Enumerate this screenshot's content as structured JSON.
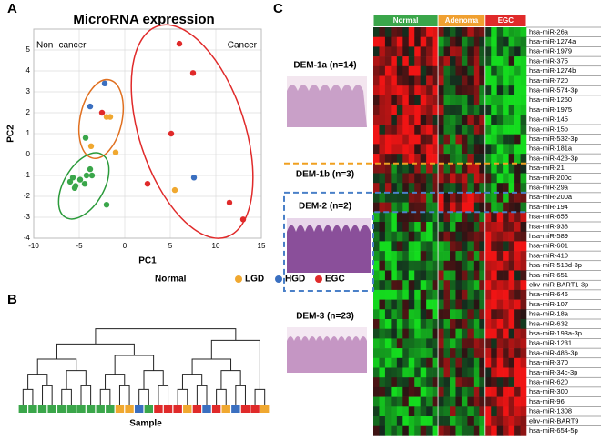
{
  "panels": [
    "A",
    "B",
    "C"
  ],
  "chart_data": [
    {
      "type": "scatter",
      "title": "MicroRNA expression",
      "x_label": "PC1",
      "y_label": "PC2",
      "annotations": [
        "Non -cancer",
        "Cancer"
      ],
      "xlim": [
        -10,
        15
      ],
      "xticks": [
        -10,
        -5,
        0,
        5,
        10,
        15
      ],
      "ylim": [
        -4,
        6
      ],
      "yticks": [
        -4,
        -3,
        -2,
        -1,
        0,
        1,
        2,
        3,
        4,
        5
      ],
      "series": [
        {
          "name": "Normal",
          "color": "#3aa64a",
          "x": [
            -6,
            -5.7,
            -5.4,
            -4.9,
            -4.4,
            -4.2,
            -3.8,
            -3.6,
            -4.3,
            -2,
            -5.5
          ],
          "values": [
            -1.3,
            -1.1,
            -1.5,
            -1.2,
            -1.4,
            -1,
            -0.7,
            -1,
            0.8,
            -2.4,
            -1.6
          ]
        },
        {
          "name": "LGD",
          "color": "#f0a830",
          "x": [
            -2,
            -1.6,
            -3.7,
            -1,
            5.5
          ],
          "values": [
            1.8,
            1.8,
            0.4,
            0.1,
            -1.7
          ]
        },
        {
          "name": "HGD",
          "color": "#3a6fc0",
          "x": [
            -2.2,
            -3.8,
            7.6
          ],
          "values": [
            3.4,
            2.3,
            -1.1
          ]
        },
        {
          "name": "EGC",
          "color": "#e02a2a",
          "x": [
            6,
            7.5,
            -2.5,
            5.1,
            2.5,
            11.5,
            13
          ],
          "values": [
            5.3,
            3.9,
            2,
            1,
            -1.4,
            -2.3,
            -3.1
          ]
        }
      ]
    },
    {
      "type": "dendrogram",
      "x_label": "Sample",
      "sample_groups": [
        0,
        0,
        0,
        0,
        0,
        0,
        0,
        0,
        0,
        0,
        1,
        1,
        2,
        0,
        3,
        3,
        3,
        1,
        3,
        2,
        3,
        1,
        2,
        3,
        3,
        1
      ]
    },
    {
      "type": "heatmap",
      "column_groups": [
        {
          "name": "Normal",
          "color": "#3aa64a"
        },
        {
          "name": "Adenoma",
          "color": "#f0a030"
        },
        {
          "name": "EGC",
          "color": "#e02a2a"
        }
      ],
      "modules": [
        {
          "label": "DEM-1a (n=14)",
          "rows": [
            "hsa-miR-26a",
            "hsa-miR-1274a",
            "hsa-miR-1979",
            "hsa-miR-375",
            "hsa-miR-1274b",
            "hsa-miR-720",
            "hsa-miR-574-3p",
            "hsa-miR-1260",
            "hsa-miR-1975",
            "hsa-miR-145",
            "hsa-miR-15b",
            "hsa-miR-532-3p",
            "hsa-miR-181a",
            "hsa-miR-423-3p"
          ]
        },
        {
          "label": "DEM-1b (n=3)",
          "rows": [
            "hsa-miR-21",
            "hsa-miR-200c",
            "hsa-miR-29a"
          ]
        },
        {
          "label": "DEM-2 (n=2)",
          "rows": [
            "hsa-miR-200a",
            "hsa-miR-194"
          ]
        },
        {
          "label": "DEM-3 (n=23)",
          "rows": [
            "hsa-miR-655",
            "hsa-miR-938",
            "hsa-miR-589",
            "hsa-miR-601",
            "hsa-miR-410",
            "hsa-miR-518d-3p",
            "hsa-miR-651",
            "ebv-miR-BART1-3p",
            "hsa-miR-646",
            "hsa-miR-107",
            "hsa-miR-18a",
            "hsa-miR-632",
            "hsa-miR-193a-3p",
            "hsa-miR-1231",
            "hsa-miR-486-3p",
            "hsa-miR-370",
            "hsa-miR-34c-3p",
            "hsa-miR-620",
            "hsa-miR-300",
            "hsa-miR-96",
            "hsa-miR-1308",
            "ebv-miR-BART9",
            "hsa-miR-654-5p"
          ]
        }
      ]
    }
  ]
}
